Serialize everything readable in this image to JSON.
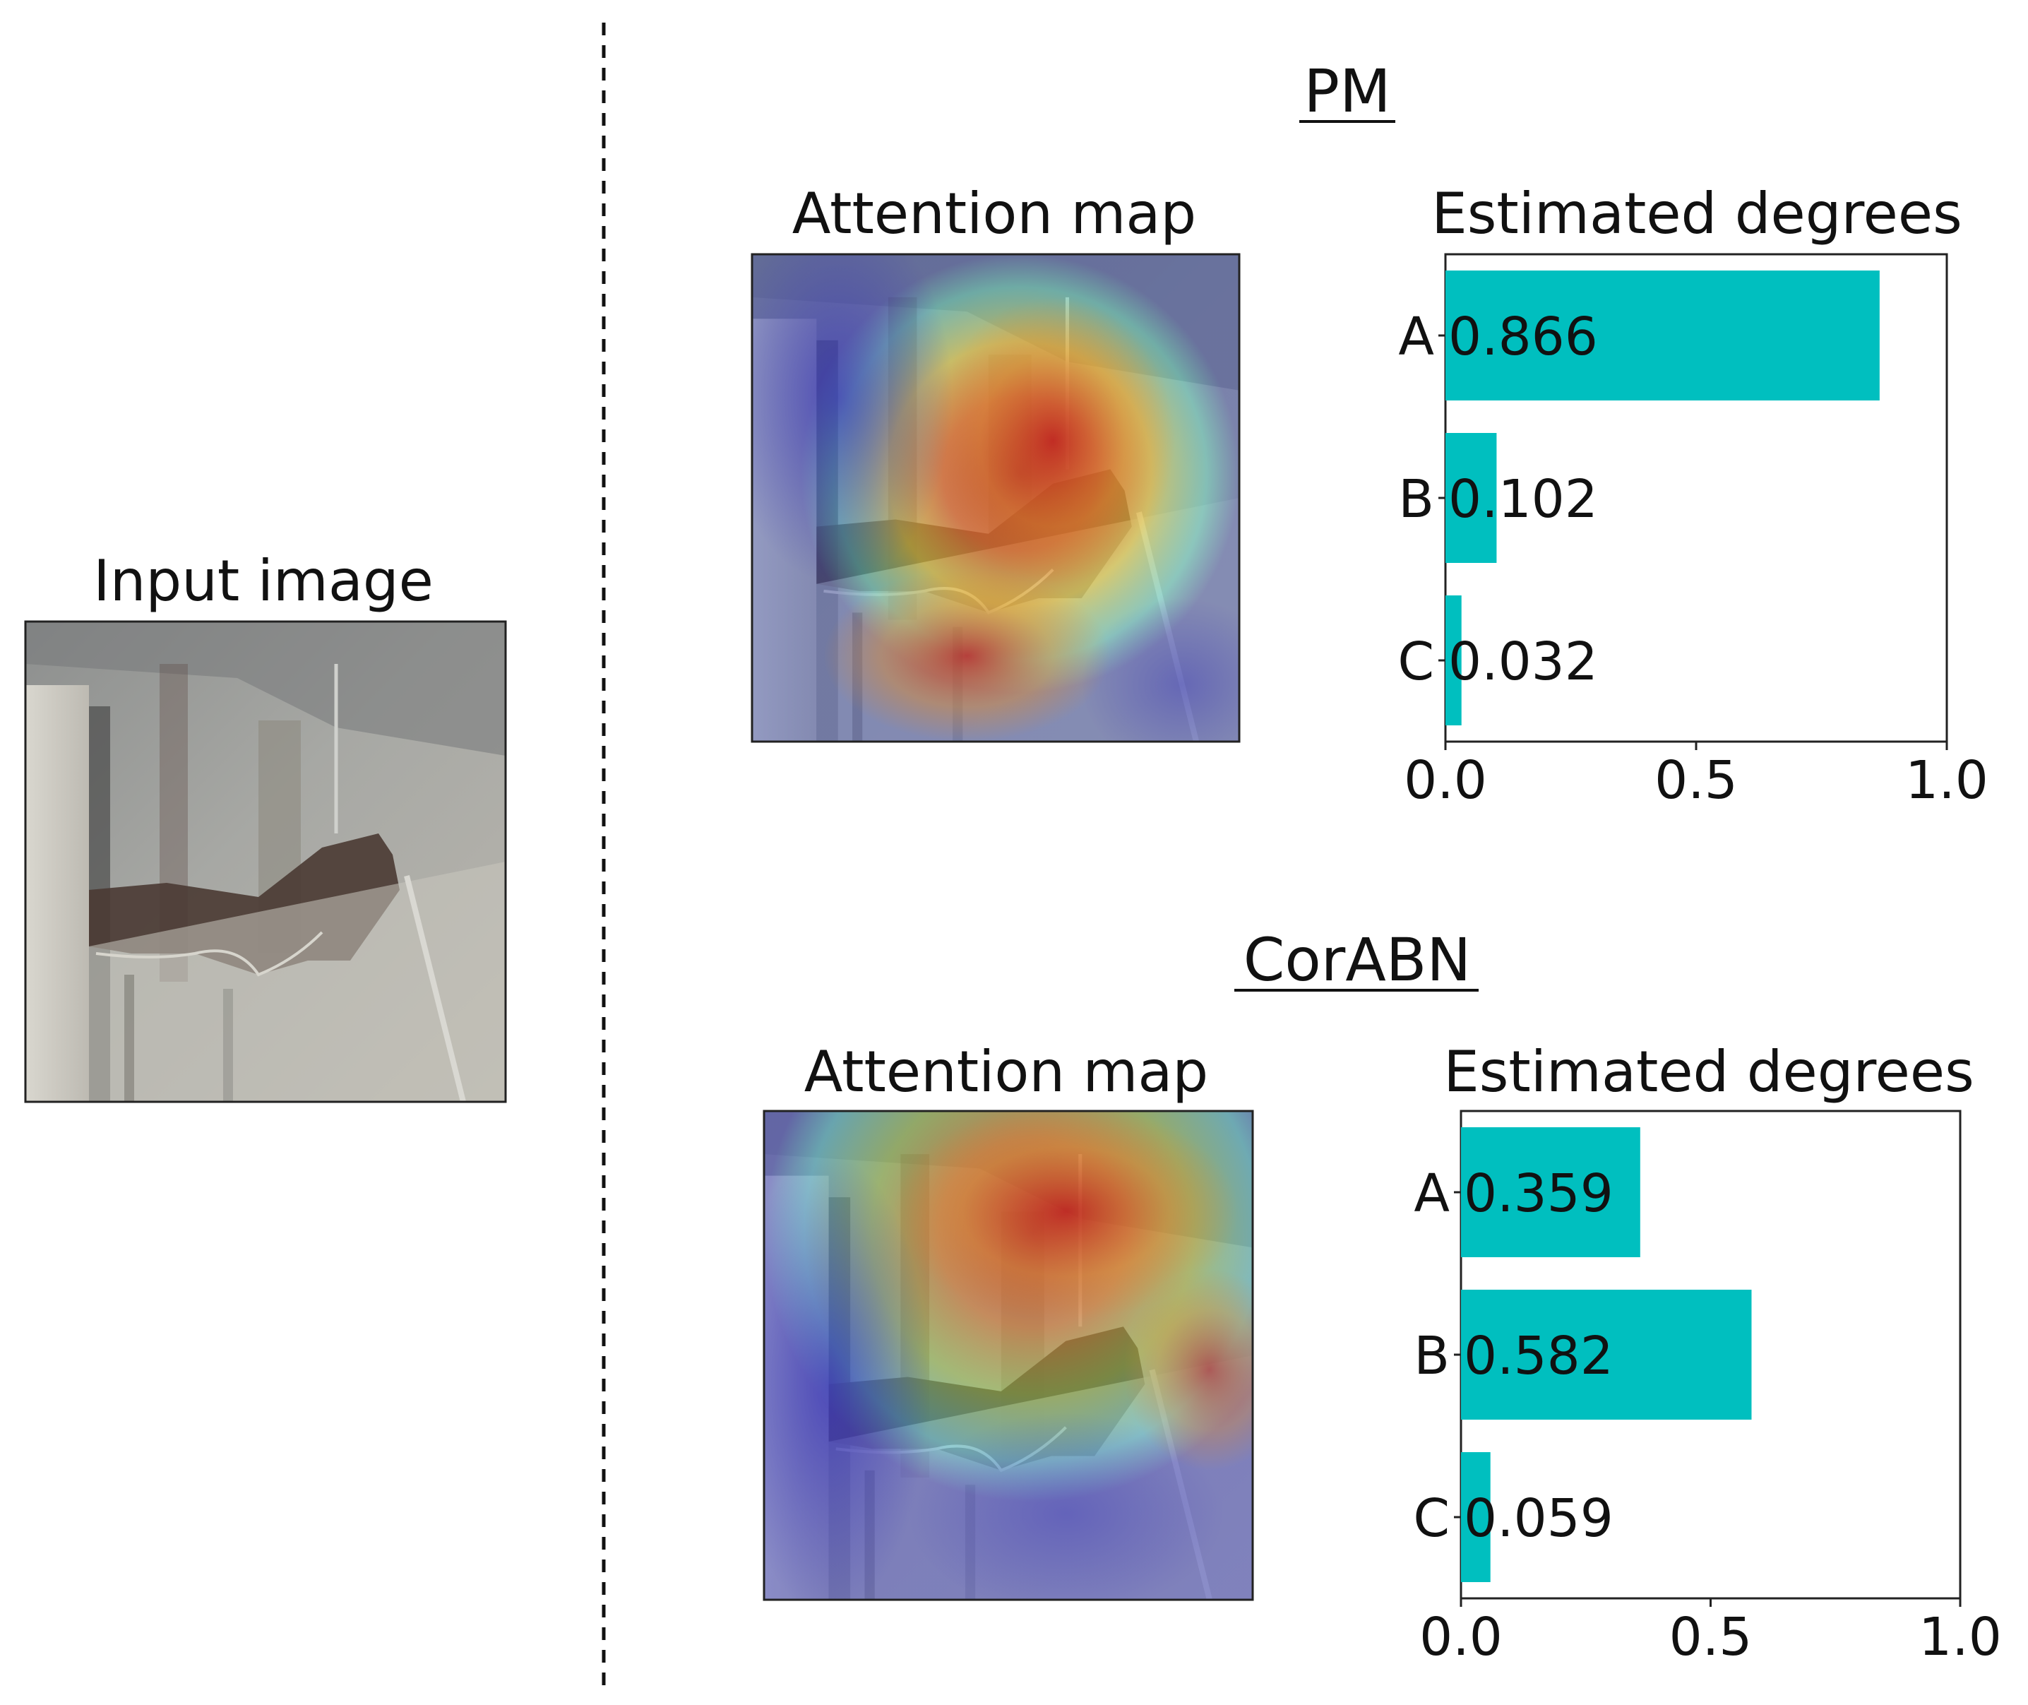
{
  "input_panel": {
    "title": "Input image"
  },
  "sections": [
    {
      "heading": "PM",
      "map_title": "Attention map",
      "chart_title": "Estimated degrees"
    },
    {
      "heading": "CorABN",
      "map_title": "Attention map",
      "chart_title": "Estimated degrees"
    }
  ],
  "chart_data": [
    {
      "type": "bar",
      "orientation": "horizontal",
      "title": "Estimated degrees",
      "categories": [
        "A",
        "B",
        "C"
      ],
      "values": [
        0.866,
        0.102,
        0.032
      ],
      "value_labels": [
        "0.866",
        "0.102",
        "0.032"
      ],
      "xlim": [
        0.0,
        1.0
      ],
      "xticks": [
        "0.0",
        "0.5",
        "1.0"
      ],
      "color": "#00bfbf",
      "grid": false
    },
    {
      "type": "bar",
      "orientation": "horizontal",
      "title": "Estimated degrees",
      "categories": [
        "A",
        "B",
        "C"
      ],
      "values": [
        0.359,
        0.582,
        0.059
      ],
      "value_labels": [
        "0.359",
        "0.582",
        "0.059"
      ],
      "xlim": [
        0.0,
        1.0
      ],
      "xticks": [
        "0.0",
        "0.5",
        "1.0"
      ],
      "color": "#00bfbf",
      "grid": false
    }
  ],
  "colors": {
    "bar": "#00bfbf",
    "axis": "#222222",
    "divider": "#111111"
  }
}
